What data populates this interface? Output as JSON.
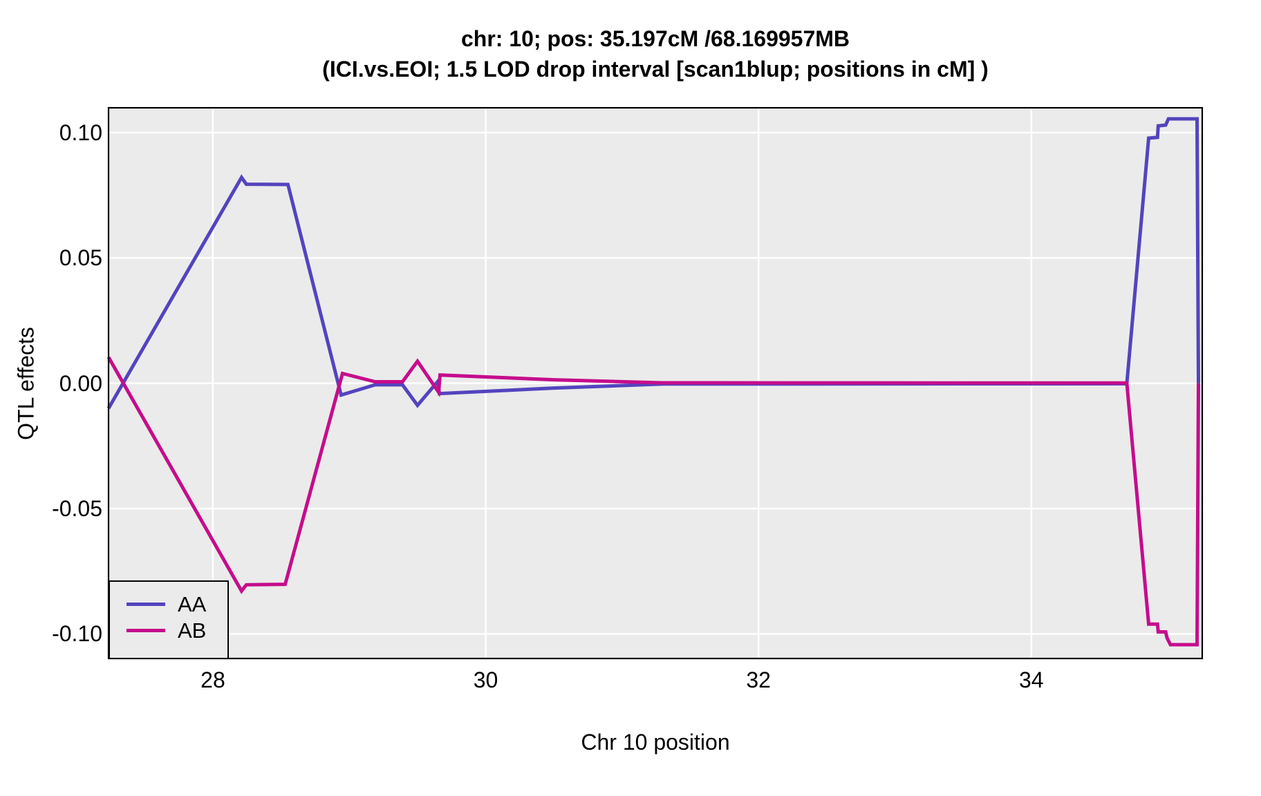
{
  "title": {
    "line1": "chr: 10; pos: 35.197cM /68.169957MB",
    "line2": "(ICI.vs.EOI; 1.5 LOD drop interval [scan1blup; positions in cM] )"
  },
  "chart_data": {
    "type": "line",
    "xlabel": "Chr 10 position",
    "ylabel": "QTL effects",
    "xlim": [
      27.235,
      35.253
    ],
    "ylim": [
      -0.1098,
      0.1099
    ],
    "grid": true,
    "panel_bg": "#EBEBEB",
    "gridline_color": "#FFFFFF",
    "border_color": "#000000",
    "line_width": 5,
    "x_axis": {
      "ticks": [
        {
          "value": 28,
          "label": "28"
        },
        {
          "value": 30,
          "label": "30"
        },
        {
          "value": 32,
          "label": "32"
        },
        {
          "value": 34,
          "label": "34"
        }
      ]
    },
    "y_axis": {
      "ticks": [
        {
          "value": 0.1,
          "label": "0.10"
        },
        {
          "value": 0.05,
          "label": "0.05"
        },
        {
          "value": 0.0,
          "label": "0.00"
        },
        {
          "value": -0.05,
          "label": "-0.05"
        },
        {
          "value": -0.1,
          "label": "-0.10"
        }
      ]
    },
    "legend": {
      "position": "bottom-left",
      "entries": [
        "AA",
        "AB"
      ]
    },
    "series": [
      {
        "name": "AA",
        "color": "#5344BE",
        "points": [
          [
            27.235,
            -0.01
          ],
          [
            28.21,
            0.0821
          ],
          [
            28.245,
            0.0794
          ],
          [
            28.55,
            0.0793
          ],
          [
            28.94,
            -0.0047
          ],
          [
            29.19,
            -0.0006
          ],
          [
            29.39,
            -0.0006
          ],
          [
            29.5,
            -0.0088
          ],
          [
            29.65,
            0.0008
          ],
          [
            29.66,
            -0.0041
          ],
          [
            30.5,
            -0.0019
          ],
          [
            31.3,
            -0.0003
          ],
          [
            34.7,
            -0.0002
          ],
          [
            34.86,
            0.0978
          ],
          [
            34.925,
            0.0981
          ],
          [
            34.93,
            0.1027
          ],
          [
            34.985,
            0.103
          ],
          [
            35.005,
            0.1055
          ],
          [
            35.215,
            0.1055
          ],
          [
            35.225,
            0.0
          ]
        ]
      },
      {
        "name": "AB",
        "color": "#C50D8C",
        "points": [
          [
            27.235,
            0.0104
          ],
          [
            28.21,
            -0.0829
          ],
          [
            28.245,
            -0.0804
          ],
          [
            28.53,
            -0.0802
          ],
          [
            28.95,
            0.0039
          ],
          [
            29.19,
            0.0006
          ],
          [
            29.39,
            0.0006
          ],
          [
            29.5,
            0.0088
          ],
          [
            29.655,
            -0.0036
          ],
          [
            29.665,
            0.0033
          ],
          [
            30.5,
            0.0014
          ],
          [
            31.29,
            0.0002
          ],
          [
            34.7,
            0.0001
          ],
          [
            34.86,
            -0.0961
          ],
          [
            34.925,
            -0.0961
          ],
          [
            34.93,
            -0.0992
          ],
          [
            34.985,
            -0.0992
          ],
          [
            34.995,
            -0.1016
          ],
          [
            35.02,
            -0.1043
          ],
          [
            35.215,
            -0.1043
          ],
          [
            35.225,
            0.0
          ]
        ]
      }
    ]
  }
}
